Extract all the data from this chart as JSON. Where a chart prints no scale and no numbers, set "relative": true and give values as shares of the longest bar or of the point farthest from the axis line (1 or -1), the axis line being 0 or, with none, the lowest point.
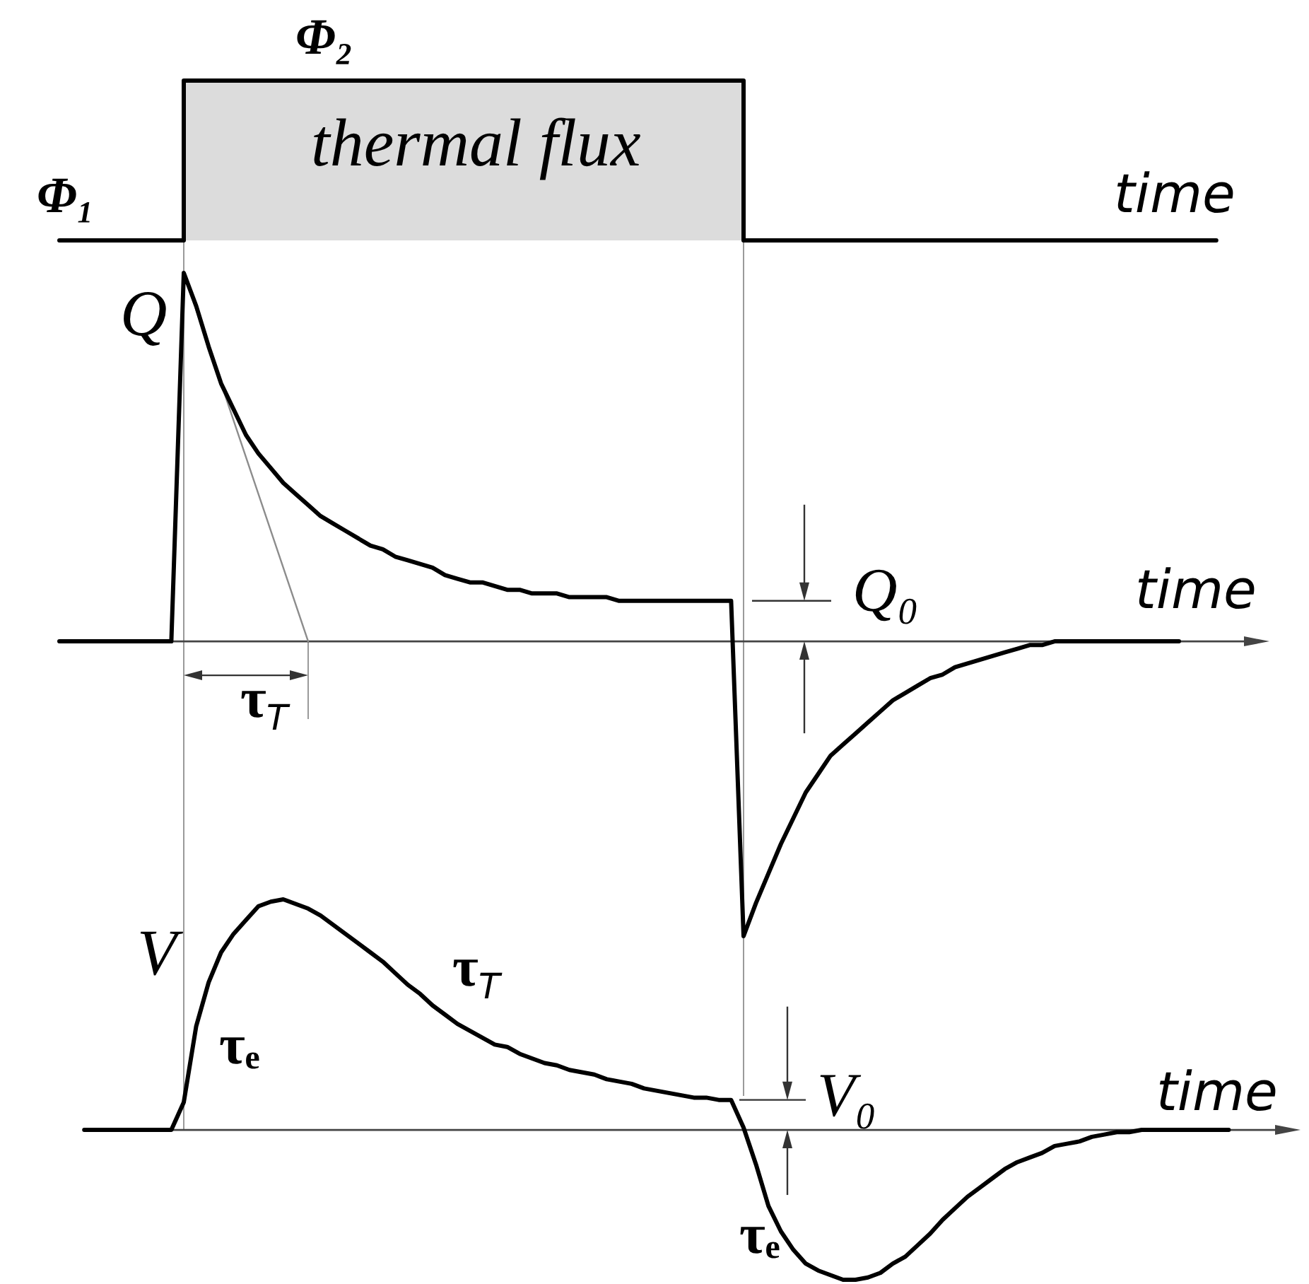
{
  "chart_data": [
    {
      "type": "step",
      "relative": true,
      "xlabel": "time",
      "categories": [
        null,
        null,
        null,
        null,
        null,
        null,
        null,
        null,
        null,
        null,
        null,
        null,
        null,
        null,
        null,
        null,
        null,
        null,
        null,
        null,
        null,
        null,
        null,
        null,
        null,
        null,
        null,
        null,
        null,
        null,
        null,
        null,
        null,
        null,
        null,
        null,
        null,
        null,
        null,
        null,
        null,
        null,
        null,
        null,
        null,
        null,
        null,
        null,
        null,
        null,
        null,
        null,
        null,
        null,
        null,
        null,
        null,
        null,
        null,
        null,
        null,
        null,
        null,
        null,
        null,
        null,
        null,
        null,
        null,
        null,
        null,
        null,
        null,
        null,
        null,
        null,
        null,
        null,
        null,
        null,
        null,
        null,
        null,
        null,
        null,
        null,
        null,
        null,
        null,
        null,
        null,
        null,
        null,
        null
      ],
      "series": [
        {
          "type": "area",
          "color": "#dcdcdc",
          "values": [
            null,
            null,
            null,
            null,
            null,
            null,
            null,
            null,
            null,
            null,
            1,
            1,
            1,
            1,
            1,
            1,
            1,
            1,
            1,
            1,
            1,
            1,
            1,
            1,
            1,
            1,
            1,
            1,
            1,
            1,
            1,
            1,
            1,
            1,
            1,
            1,
            1,
            1,
            1,
            1,
            1,
            1,
            1,
            1,
            1,
            1,
            1,
            1,
            1,
            1,
            1,
            1,
            1,
            1,
            1,
            1,
            null,
            null,
            null,
            null,
            null,
            null,
            null,
            null,
            null,
            null,
            null,
            null,
            null,
            null,
            null,
            null,
            null,
            null,
            null,
            null,
            null,
            null,
            null,
            null,
            null,
            null,
            null,
            null,
            null,
            null,
            null,
            null,
            null,
            null,
            null,
            null,
            null,
            null
          ]
        },
        {
          "color": "#000000",
          "values": [
            0,
            0,
            0,
            0,
            0,
            0,
            0,
            0,
            0,
            0,
            1,
            1,
            1,
            1,
            1,
            1,
            1,
            1,
            1,
            1,
            1,
            1,
            1,
            1,
            1,
            1,
            1,
            1,
            1,
            1,
            1,
            1,
            1,
            1,
            1,
            1,
            1,
            1,
            1,
            1,
            1,
            1,
            1,
            1,
            1,
            1,
            1,
            1,
            1,
            1,
            1,
            1,
            1,
            1,
            1,
            0,
            0,
            0,
            0,
            0,
            0,
            0,
            0,
            0,
            0,
            0,
            0,
            0,
            0,
            0,
            0,
            0,
            0,
            0,
            0,
            0,
            0,
            0,
            0,
            0,
            0,
            0,
            0,
            0,
            0,
            0,
            0,
            0,
            0,
            0,
            0,
            0,
            0,
            0
          ]
        }
      ],
      "annotations": [
        {
          "text": "Φ₂",
          "y": 1
        },
        "thermal flux",
        {
          "text": "Φ₁",
          "y": 0
        }
      ]
    },
    {
      "type": "line",
      "relative": true,
      "xlabel": "time",
      "ylabel": "Q",
      "categories": [
        null,
        null,
        null,
        null,
        null,
        null,
        null,
        null,
        null,
        null,
        null,
        null,
        null,
        null,
        null,
        null,
        null,
        null,
        null,
        null,
        null,
        null,
        null,
        null,
        null,
        null,
        null,
        null,
        null,
        null,
        null,
        null,
        null,
        null,
        null,
        null,
        null,
        null,
        null,
        null,
        null,
        null,
        null,
        null,
        null,
        null,
        null,
        null,
        null,
        null,
        null,
        null,
        null,
        null,
        null,
        null,
        null,
        null,
        null,
        null,
        null,
        null,
        null,
        null,
        null,
        null,
        null,
        null,
        null,
        null,
        null,
        null,
        null,
        null,
        null,
        null,
        null,
        null,
        null,
        null,
        null,
        null,
        null,
        null,
        null,
        null,
        null,
        null,
        null,
        null,
        null
      ],
      "series": [
        {
          "color": "#000000",
          "values": [
            0,
            0,
            0,
            0,
            0,
            0,
            0,
            0,
            0,
            0,
            1,
            0.91,
            0.8,
            0.7,
            0.63,
            0.56,
            0.51,
            0.47,
            0.43,
            0.4,
            0.37,
            0.34,
            0.32,
            0.3,
            0.28,
            0.26,
            0.25,
            0.23,
            0.22,
            0.21,
            0.2,
            0.18,
            0.17,
            0.16,
            0.16,
            0.15,
            0.14,
            0.14,
            0.13,
            0.13,
            0.13,
            0.12,
            0.12,
            0.12,
            0.12,
            0.11,
            0.11,
            0.11,
            0.11,
            0.11,
            0.11,
            0.11,
            0.11,
            0.11,
            0.11,
            -0.8,
            -0.71,
            -0.63,
            -0.55,
            -0.48,
            -0.41,
            -0.36,
            -0.31,
            -0.28,
            -0.25,
            -0.22,
            -0.19,
            -0.16,
            -0.14,
            -0.12,
            -0.1,
            -0.09,
            -0.07,
            -0.06,
            -0.05,
            -0.04,
            -0.03,
            -0.02,
            -0.01,
            -0.01,
            0,
            0,
            0,
            0,
            0,
            0,
            0,
            0,
            0,
            0,
            0
          ]
        },
        {
          "color": "#8c8c8c",
          "values": [
            null,
            null,
            null,
            null,
            null,
            null,
            null,
            null,
            null,
            null,
            1,
            null,
            null,
            null,
            null,
            null,
            null,
            null,
            null,
            null,
            0,
            null,
            null,
            null,
            null,
            null,
            null,
            null,
            null,
            null,
            null,
            null,
            null,
            null,
            null,
            null,
            null,
            null,
            null,
            null,
            null,
            null,
            null,
            null,
            null,
            null,
            null,
            null,
            null,
            null,
            null,
            null,
            null,
            null,
            null,
            null,
            null,
            null,
            null,
            null,
            null,
            null,
            null,
            null,
            null,
            null,
            null,
            null,
            null,
            null,
            null,
            null,
            null,
            null,
            null,
            null,
            null,
            null,
            null,
            null,
            null,
            null,
            null,
            null,
            null,
            null,
            null,
            null,
            null,
            null,
            null
          ]
        }
      ],
      "annotations": [
        "τ$_{T}$",
        "Q₀"
      ]
    },
    {
      "type": "line",
      "relative": true,
      "xlabel": "time",
      "ylabel": "V",
      "categories": [
        null,
        null,
        null,
        null,
        null,
        null,
        null,
        null,
        null,
        null,
        null,
        null,
        null,
        null,
        null,
        null,
        null,
        null,
        null,
        null,
        null,
        null,
        null,
        null,
        null,
        null,
        null,
        null,
        null,
        null,
        null,
        null,
        null,
        null,
        null,
        null,
        null,
        null,
        null,
        null,
        null,
        null,
        null,
        null,
        null,
        null,
        null,
        null,
        null,
        null,
        null,
        null,
        null,
        null,
        null,
        null,
        null,
        null,
        null,
        null,
        null,
        null,
        null,
        null,
        null,
        null,
        null,
        null,
        null,
        null,
        null,
        null,
        null,
        null,
        null,
        null,
        null,
        null,
        null,
        null,
        null,
        null,
        null,
        null,
        null,
        null,
        null,
        null,
        null,
        null,
        null,
        null,
        null,
        null,
        null
      ],
      "series": [
        {
          "color": "#000000",
          "values": [
            null,
            null,
            0,
            0,
            0,
            0,
            0,
            0,
            0,
            0,
            0.12,
            0.45,
            0.64,
            0.77,
            0.85,
            0.91,
            0.97,
            0.99,
            1,
            0.98,
            0.96,
            0.93,
            0.89,
            0.85,
            0.81,
            0.77,
            0.73,
            0.68,
            0.63,
            0.59,
            0.54,
            0.5,
            0.46,
            0.43,
            0.4,
            0.37,
            0.36,
            0.33,
            0.31,
            0.29,
            0.28,
            0.26,
            0.25,
            0.24,
            0.22,
            0.21,
            0.2,
            0.18,
            0.17,
            0.16,
            0.15,
            0.14,
            0.14,
            0.13,
            0.13,
            0.01,
            -0.15,
            -0.33,
            -0.44,
            -0.52,
            -0.58,
            -0.61,
            -0.63,
            -0.65,
            -0.65,
            -0.64,
            -0.62,
            -0.58,
            -0.55,
            -0.5,
            -0.45,
            -0.39,
            -0.34,
            -0.29,
            -0.25,
            -0.21,
            -0.17,
            -0.14,
            -0.12,
            -0.1,
            -0.07,
            -0.06,
            -0.05,
            -0.03,
            -0.02,
            -0.01,
            -0.01,
            0,
            0,
            0,
            0,
            0,
            0,
            0,
            0
          ]
        }
      ],
      "annotations": [
        "τₑ",
        "τ$_{T}$",
        "V₀",
        "τₑ"
      ]
    }
  ]
}
